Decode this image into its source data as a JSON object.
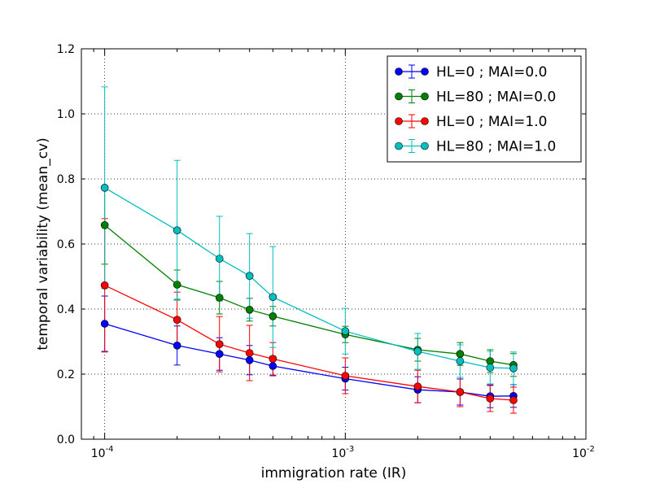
{
  "chart_data": {
    "type": "line",
    "xlabel": "immigration rate (IR)",
    "ylabel": "temporal variability (mean_cv)",
    "xscale": "log",
    "xlim": [
      8e-05,
      0.01
    ],
    "ylim": [
      0.0,
      1.2
    ],
    "grid": true,
    "legend_position": "top-right",
    "xticks": [
      {
        "value": 0.0001,
        "label": "10^-4"
      },
      {
        "value": 0.001,
        "label": "10^-3"
      },
      {
        "value": 0.01,
        "label": "10^-2"
      }
    ],
    "yticks": [
      {
        "value": 0.0,
        "label": "0.0"
      },
      {
        "value": 0.2,
        "label": "0.2"
      },
      {
        "value": 0.4,
        "label": "0.4"
      },
      {
        "value": 0.6,
        "label": "0.6"
      },
      {
        "value": 0.8,
        "label": "0.8"
      },
      {
        "value": 1.0,
        "label": "1.0"
      },
      {
        "value": 1.2,
        "label": "1.2"
      }
    ],
    "x": [
      0.0001,
      0.0002,
      0.0003,
      0.0004,
      0.0005,
      0.001,
      0.002,
      0.003,
      0.004,
      0.005
    ],
    "series": [
      {
        "name": "HL=0 ; MAI=0.0",
        "color": "#0000ff",
        "values": [
          0.355,
          0.288,
          0.262,
          0.243,
          0.225,
          0.186,
          0.152,
          0.145,
          0.132,
          0.133
        ],
        "errors": [
          0.085,
          0.06,
          0.05,
          0.045,
          0.03,
          0.035,
          0.04,
          0.04,
          0.035,
          0.035
        ]
      },
      {
        "name": "HL=80 ; MAI=0.0",
        "color": "#008000",
        "values": [
          0.658,
          0.475,
          0.435,
          0.398,
          0.378,
          0.322,
          0.275,
          0.262,
          0.24,
          0.228
        ],
        "errors": [
          0.12,
          0.045,
          0.05,
          0.035,
          0.03,
          0.025,
          0.035,
          0.035,
          0.035,
          0.035
        ]
      },
      {
        "name": "HL=0 ; MAI=1.0",
        "color": "#ff0000",
        "values": [
          0.473,
          0.367,
          0.292,
          0.265,
          0.247,
          0.195,
          0.162,
          0.145,
          0.125,
          0.12
        ],
        "errors": [
          0.205,
          0.085,
          0.085,
          0.085,
          0.05,
          0.055,
          0.05,
          0.045,
          0.04,
          0.04
        ]
      },
      {
        "name": "HL=80 ; MAI=1.0",
        "color": "#00bfbf",
        "values": [
          0.773,
          0.642,
          0.555,
          0.502,
          0.437,
          0.332,
          0.27,
          0.24,
          0.22,
          0.218
        ],
        "errors": [
          0.31,
          0.215,
          0.13,
          0.13,
          0.155,
          0.07,
          0.055,
          0.05,
          0.05,
          0.05
        ]
      }
    ]
  }
}
